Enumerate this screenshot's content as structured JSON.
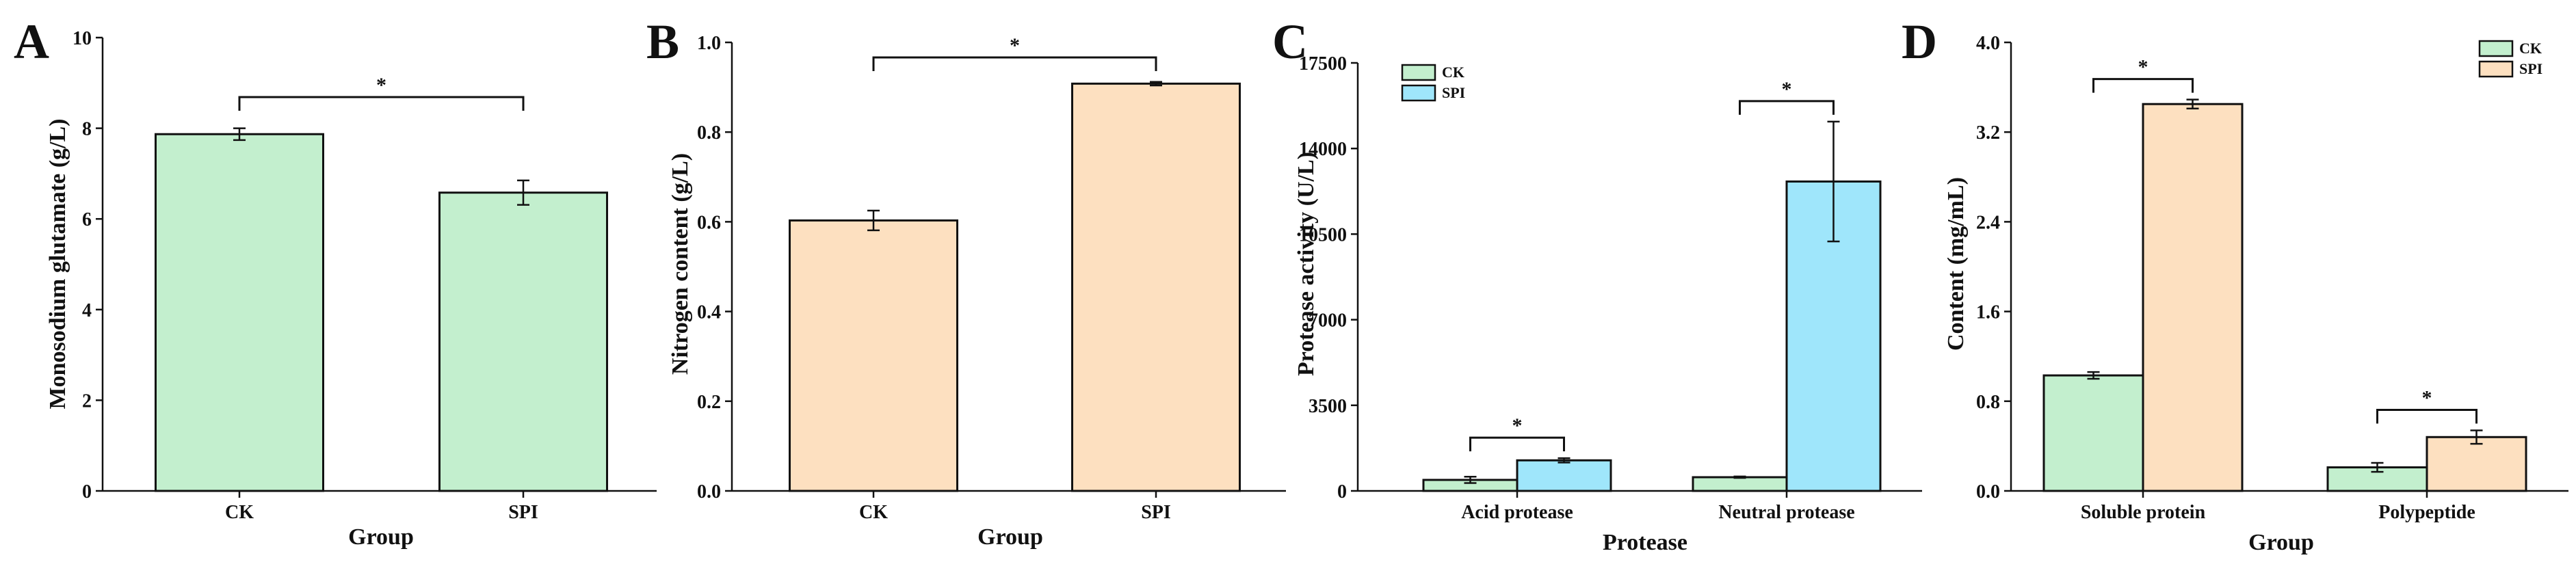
{
  "colors": {
    "ck_green": "#c3efce",
    "spi_orange": "#fde0c0",
    "spi_blue": "#9fe6fb",
    "stroke": "#111111"
  },
  "panels": [
    {
      "letter": "A",
      "xlabel": "Group",
      "ylabel": "Monosodium glutamate (g/L)",
      "yticks": [
        "0",
        "2",
        "4",
        "6",
        "8",
        "10"
      ]
    },
    {
      "letter": "B",
      "xlabel": "Group",
      "ylabel": "Nitrogen content (g/L)",
      "yticks": [
        "0.0",
        "0.2",
        "0.4",
        "0.6",
        "0.8",
        "1.0"
      ]
    },
    {
      "letter": "C",
      "xlabel": "Protease",
      "ylabel": "Protease activity (U/L)",
      "yticks": [
        "0",
        "3500",
        "7000",
        "10500",
        "14000",
        "17500"
      ]
    },
    {
      "letter": "D",
      "xlabel": "Group",
      "ylabel": "Content (mg/mL)",
      "yticks": [
        "0.0",
        "0.8",
        "1.6",
        "2.4",
        "3.2",
        "4.0"
      ]
    }
  ],
  "chart_data": [
    {
      "type": "bar",
      "panel": "A",
      "categories": [
        "CK",
        "SPI"
      ],
      "values": [
        7.87,
        6.58
      ],
      "errors": [
        0.13,
        0.27
      ],
      "ylim": [
        0,
        10
      ],
      "xlabel": "Group",
      "ylabel": "Monosodium glutamate (g/L)",
      "significance": [
        {
          "between": [
            "CK",
            "SPI"
          ],
          "label": "*"
        }
      ]
    },
    {
      "type": "bar",
      "panel": "B",
      "categories": [
        "CK",
        "SPI"
      ],
      "values": [
        0.603,
        0.908
      ],
      "errors": [
        0.022,
        0.004
      ],
      "ylim": [
        0,
        1.0
      ],
      "xlabel": "Group",
      "ylabel": "Nitrogen content (g/L)",
      "significance": [
        {
          "between": [
            "CK",
            "SPI"
          ],
          "label": "*"
        }
      ]
    },
    {
      "type": "bar",
      "panel": "C",
      "categories": [
        "Acid protease",
        "Neutral protease"
      ],
      "series": [
        {
          "name": "CK",
          "values": [
            450,
            560
          ],
          "errors": [
            130,
            30
          ]
        },
        {
          "name": "SPI",
          "values": [
            1250,
            12650
          ],
          "errors": [
            90,
            2450
          ]
        }
      ],
      "ylim": [
        0,
        17500
      ],
      "xlabel": "Protease",
      "ylabel": "Protease activity (U/L)",
      "legend": "top-left",
      "significance": [
        {
          "category": "Acid protease",
          "label": "*"
        },
        {
          "category": "Neutral protease",
          "label": "*"
        }
      ]
    },
    {
      "type": "bar",
      "panel": "D",
      "categories": [
        "Soluble protein",
        "Polypeptide"
      ],
      "series": [
        {
          "name": "CK",
          "values": [
            1.03,
            0.21
          ],
          "errors": [
            0.03,
            0.04
          ]
        },
        {
          "name": "SPI",
          "values": [
            3.45,
            0.48
          ],
          "errors": [
            0.04,
            0.06
          ]
        }
      ],
      "ylim": [
        0,
        4.0
      ],
      "xlabel": "Group",
      "ylabel": "Content (mg/mL)",
      "legend": "top-right",
      "significance": [
        {
          "category": "Soluble protein",
          "label": "*"
        },
        {
          "category": "Polypeptide",
          "label": "*"
        }
      ]
    }
  ]
}
